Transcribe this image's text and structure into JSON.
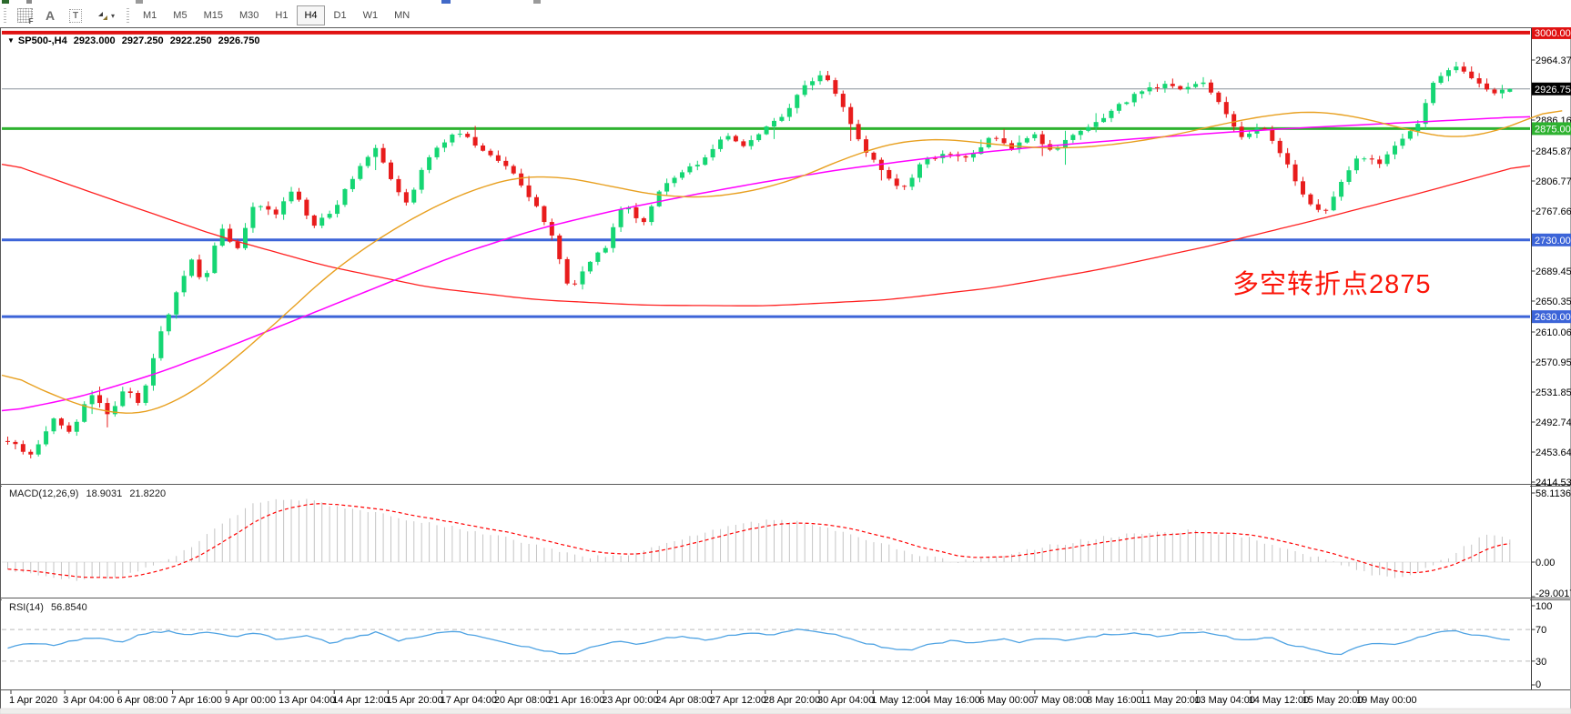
{
  "toolbar": {
    "tools": [
      {
        "name": "fibonacci-tool",
        "glyph": "F"
      },
      {
        "name": "text-tool",
        "glyph": "A"
      },
      {
        "name": "text-label-tool",
        "glyph": "T"
      },
      {
        "name": "arrows-tool",
        "glyph": ""
      }
    ],
    "periods": [
      "M1",
      "M5",
      "M15",
      "M30",
      "H1",
      "H4",
      "D1",
      "W1",
      "MN"
    ],
    "active_period": "H4"
  },
  "chart_data": {
    "type": "candlestick",
    "symbol_period": "SP500-,H4",
    "ohlc": {
      "open": "2923.000",
      "high": "2927.250",
      "low": "2922.250",
      "close": "2926.750"
    },
    "price_axis_ticks": [
      "2964.375",
      "2886.165",
      "2845.875",
      "2806.770",
      "2767.665",
      "2689.455",
      "2650.350",
      "2610.060",
      "2570.955",
      "2531.850",
      "2492.745",
      "2453.640",
      "2414.535"
    ],
    "levels": [
      {
        "value": 3000.0,
        "label": "3000.000",
        "color": "#E01212",
        "thickness": 4
      },
      {
        "value": 2875.0,
        "label": "2875.000",
        "color": "#2EB230",
        "thickness": 3
      },
      {
        "value": 2730.0,
        "label": "2730.000",
        "color": "#3C64D8",
        "thickness": 3
      },
      {
        "value": 2630.0,
        "label": "2630.000",
        "color": "#3C64D8",
        "thickness": 3
      }
    ],
    "bid": {
      "value": 2926.75,
      "label": "2926.750",
      "line_color": "#8A939B",
      "badge_color": "#000000"
    },
    "time_labels": [
      "1 Apr 2020",
      "3 Apr 04:00",
      "6 Apr 08:00",
      "7 Apr 16:00",
      "9 Apr 00:00",
      "13 Apr 04:00",
      "14 Apr 12:00",
      "15 Apr 20:00",
      "17 Apr 04:00",
      "20 Apr 08:00",
      "21 Apr 16:00",
      "23 Apr 00:00",
      "24 Apr 08:00",
      "27 Apr 12:00",
      "28 Apr 20:00",
      "30 Apr 04:00",
      "1 May 12:00",
      "4 May 16:00",
      "6 May 00:00",
      "7 May 08:00",
      "8 May 16:00",
      "11 May 20:00",
      "13 May 04:00",
      "14 May 12:00",
      "15 May 20:00",
      "19 May 00:00"
    ],
    "colors": {
      "up": "#15D673",
      "down": "#E81C1C",
      "ma_fast": "#E8A020",
      "ma_mid": "#FF00FF",
      "ma_slow": "#FF2020",
      "macd_hist": "#C4C4C4",
      "macd_signal": "#FF0000",
      "rsi": "#4FA3E3"
    },
    "close_path": [
      [
        0,
        2468
      ],
      [
        0.016,
        2448
      ],
      [
        0.03,
        2498
      ],
      [
        0.042,
        2478
      ],
      [
        0.055,
        2532
      ],
      [
        0.068,
        2500
      ],
      [
        0.078,
        2540
      ],
      [
        0.088,
        2515
      ],
      [
        0.1,
        2598
      ],
      [
        0.112,
        2660
      ],
      [
        0.122,
        2705
      ],
      [
        0.13,
        2672
      ],
      [
        0.142,
        2748
      ],
      [
        0.152,
        2712
      ],
      [
        0.165,
        2782
      ],
      [
        0.178,
        2760
      ],
      [
        0.19,
        2798
      ],
      [
        0.203,
        2748
      ],
      [
        0.218,
        2772
      ],
      [
        0.232,
        2820
      ],
      [
        0.245,
        2852
      ],
      [
        0.258,
        2800
      ],
      [
        0.266,
        2778
      ],
      [
        0.278,
        2832
      ],
      [
        0.29,
        2858
      ],
      [
        0.3,
        2872
      ],
      [
        0.312,
        2852
      ],
      [
        0.325,
        2838
      ],
      [
        0.338,
        2812
      ],
      [
        0.352,
        2772
      ],
      [
        0.364,
        2730
      ],
      [
        0.374,
        2662
      ],
      [
        0.386,
        2700
      ],
      [
        0.398,
        2722
      ],
      [
        0.41,
        2780
      ],
      [
        0.422,
        2750
      ],
      [
        0.435,
        2798
      ],
      [
        0.45,
        2818
      ],
      [
        0.465,
        2838
      ],
      [
        0.478,
        2868
      ],
      [
        0.492,
        2852
      ],
      [
        0.505,
        2878
      ],
      [
        0.518,
        2895
      ],
      [
        0.53,
        2932
      ],
      [
        0.543,
        2948
      ],
      [
        0.556,
        2902
      ],
      [
        0.568,
        2852
      ],
      [
        0.582,
        2822
      ],
      [
        0.595,
        2792
      ],
      [
        0.61,
        2835
      ],
      [
        0.625,
        2842
      ],
      [
        0.64,
        2836
      ],
      [
        0.655,
        2868
      ],
      [
        0.668,
        2846
      ],
      [
        0.682,
        2870
      ],
      [
        0.695,
        2845
      ],
      [
        0.71,
        2866
      ],
      [
        0.725,
        2882
      ],
      [
        0.74,
        2905
      ],
      [
        0.755,
        2925
      ],
      [
        0.77,
        2932
      ],
      [
        0.782,
        2925
      ],
      [
        0.795,
        2938
      ],
      [
        0.808,
        2905
      ],
      [
        0.822,
        2862
      ],
      [
        0.835,
        2880
      ],
      [
        0.848,
        2842
      ],
      [
        0.862,
        2788
      ],
      [
        0.875,
        2762
      ],
      [
        0.888,
        2805
      ],
      [
        0.9,
        2842
      ],
      [
        0.912,
        2828
      ],
      [
        0.925,
        2856
      ],
      [
        0.938,
        2878
      ],
      [
        0.95,
        2938
      ],
      [
        0.962,
        2958
      ],
      [
        0.975,
        2940
      ],
      [
        0.988,
        2922
      ],
      [
        1,
        2926.75
      ]
    ],
    "ma_orange_path": [
      [
        0,
        2560
      ],
      [
        0.03,
        2530
      ],
      [
        0.06,
        2508
      ],
      [
        0.09,
        2502
      ],
      [
        0.12,
        2528
      ],
      [
        0.15,
        2576
      ],
      [
        0.18,
        2630
      ],
      [
        0.21,
        2686
      ],
      [
        0.24,
        2730
      ],
      [
        0.27,
        2766
      ],
      [
        0.3,
        2794
      ],
      [
        0.33,
        2812
      ],
      [
        0.36,
        2812
      ],
      [
        0.39,
        2800
      ],
      [
        0.42,
        2788
      ],
      [
        0.45,
        2785
      ],
      [
        0.48,
        2793
      ],
      [
        0.51,
        2810
      ],
      [
        0.54,
        2836
      ],
      [
        0.57,
        2856
      ],
      [
        0.6,
        2862
      ],
      [
        0.63,
        2856
      ],
      [
        0.66,
        2850
      ],
      [
        0.69,
        2850
      ],
      [
        0.72,
        2856
      ],
      [
        0.75,
        2866
      ],
      [
        0.78,
        2880
      ],
      [
        0.81,
        2892
      ],
      [
        0.84,
        2898
      ],
      [
        0.87,
        2890
      ],
      [
        0.9,
        2874
      ],
      [
        0.93,
        2862
      ],
      [
        0.96,
        2872
      ],
      [
        0.98,
        2890
      ],
      [
        1,
        2902
      ]
    ],
    "ma_magenta_path": [
      [
        0,
        2505
      ],
      [
        0.05,
        2525
      ],
      [
        0.1,
        2555
      ],
      [
        0.15,
        2592
      ],
      [
        0.2,
        2632
      ],
      [
        0.25,
        2672
      ],
      [
        0.3,
        2712
      ],
      [
        0.35,
        2744
      ],
      [
        0.4,
        2768
      ],
      [
        0.45,
        2788
      ],
      [
        0.5,
        2806
      ],
      [
        0.55,
        2822
      ],
      [
        0.6,
        2835
      ],
      [
        0.65,
        2846
      ],
      [
        0.7,
        2855
      ],
      [
        0.75,
        2863
      ],
      [
        0.8,
        2870
      ],
      [
        0.85,
        2876
      ],
      [
        0.9,
        2881
      ],
      [
        0.95,
        2886
      ],
      [
        1,
        2891
      ]
    ],
    "ma_red_path": [
      [
        0,
        2833
      ],
      [
        0.07,
        2784
      ],
      [
        0.14,
        2736
      ],
      [
        0.21,
        2697
      ],
      [
        0.28,
        2668
      ],
      [
        0.35,
        2652
      ],
      [
        0.42,
        2645
      ],
      [
        0.5,
        2644
      ],
      [
        0.58,
        2652
      ],
      [
        0.65,
        2668
      ],
      [
        0.72,
        2692
      ],
      [
        0.79,
        2722
      ],
      [
        0.86,
        2756
      ],
      [
        0.93,
        2792
      ],
      [
        1,
        2830
      ]
    ],
    "macd": {
      "name": "MACD(12,26,9)",
      "value_main": "18.9031",
      "value_signal": "21.8220",
      "axis": [
        {
          "v": 58.1136,
          "label": "58.1136"
        },
        {
          "v": 0,
          "label": "0.00"
        },
        {
          "v": -29.0017,
          "label": "-29.0017"
        }
      ],
      "path": [
        [
          0,
          -6
        ],
        [
          0.02,
          -11
        ],
        [
          0.045,
          -15
        ],
        [
          0.07,
          -13
        ],
        [
          0.09,
          -7
        ],
        [
          0.11,
          4
        ],
        [
          0.13,
          20
        ],
        [
          0.15,
          38
        ],
        [
          0.165,
          50
        ],
        [
          0.18,
          54
        ],
        [
          0.2,
          52
        ],
        [
          0.22,
          47
        ],
        [
          0.25,
          40
        ],
        [
          0.28,
          33
        ],
        [
          0.31,
          26
        ],
        [
          0.34,
          18
        ],
        [
          0.37,
          9
        ],
        [
          0.39,
          4
        ],
        [
          0.41,
          6
        ],
        [
          0.43,
          12
        ],
        [
          0.45,
          20
        ],
        [
          0.47,
          28
        ],
        [
          0.49,
          33
        ],
        [
          0.51,
          35
        ],
        [
          0.53,
          33
        ],
        [
          0.55,
          27
        ],
        [
          0.57,
          20
        ],
        [
          0.59,
          12
        ],
        [
          0.61,
          5
        ],
        [
          0.63,
          0
        ],
        [
          0.65,
          3
        ],
        [
          0.67,
          8
        ],
        [
          0.69,
          13
        ],
        [
          0.71,
          17
        ],
        [
          0.73,
          21
        ],
        [
          0.75,
          24
        ],
        [
          0.77,
          26
        ],
        [
          0.79,
          26
        ],
        [
          0.81,
          24
        ],
        [
          0.83,
          19
        ],
        [
          0.85,
          12
        ],
        [
          0.87,
          5
        ],
        [
          0.89,
          -3
        ],
        [
          0.905,
          -9
        ],
        [
          0.92,
          -13
        ],
        [
          0.935,
          -10
        ],
        [
          0.95,
          -3
        ],
        [
          0.96,
          5
        ],
        [
          0.97,
          13
        ],
        [
          0.98,
          20
        ],
        [
          0.99,
          24
        ],
        [
          1,
          19
        ]
      ]
    },
    "rsi": {
      "name": "RSI(14)",
      "value": "56.8540",
      "axis": [
        {
          "v": 100,
          "label": "100"
        },
        {
          "v": 70,
          "label": "70"
        },
        {
          "v": 30,
          "label": "30"
        },
        {
          "v": 0,
          "label": "0"
        }
      ],
      "levels": [
        70,
        30
      ],
      "path": [
        [
          0,
          47
        ],
        [
          0.015,
          52
        ],
        [
          0.03,
          50
        ],
        [
          0.045,
          57
        ],
        [
          0.06,
          60
        ],
        [
          0.075,
          54
        ],
        [
          0.09,
          65
        ],
        [
          0.105,
          68
        ],
        [
          0.12,
          62
        ],
        [
          0.135,
          67
        ],
        [
          0.15,
          60
        ],
        [
          0.165,
          65
        ],
        [
          0.18,
          58
        ],
        [
          0.2,
          63
        ],
        [
          0.215,
          53
        ],
        [
          0.23,
          60
        ],
        [
          0.245,
          66
        ],
        [
          0.26,
          56
        ],
        [
          0.275,
          62
        ],
        [
          0.29,
          67
        ],
        [
          0.3,
          68
        ],
        [
          0.315,
          60
        ],
        [
          0.33,
          55
        ],
        [
          0.345,
          48
        ],
        [
          0.36,
          43
        ],
        [
          0.375,
          38
        ],
        [
          0.39,
          48
        ],
        [
          0.405,
          55
        ],
        [
          0.42,
          50
        ],
        [
          0.435,
          58
        ],
        [
          0.45,
          61
        ],
        [
          0.465,
          57
        ],
        [
          0.48,
          63
        ],
        [
          0.495,
          66
        ],
        [
          0.51,
          63
        ],
        [
          0.525,
          70
        ],
        [
          0.54,
          68
        ],
        [
          0.555,
          61
        ],
        [
          0.57,
          53
        ],
        [
          0.585,
          47
        ],
        [
          0.6,
          44
        ],
        [
          0.615,
          52
        ],
        [
          0.63,
          56
        ],
        [
          0.645,
          52
        ],
        [
          0.66,
          58
        ],
        [
          0.675,
          54
        ],
        [
          0.69,
          60
        ],
        [
          0.705,
          55
        ],
        [
          0.72,
          61
        ],
        [
          0.735,
          64
        ],
        [
          0.75,
          66
        ],
        [
          0.765,
          62
        ],
        [
          0.78,
          65
        ],
        [
          0.795,
          67
        ],
        [
          0.81,
          61
        ],
        [
          0.825,
          56
        ],
        [
          0.84,
          60
        ],
        [
          0.855,
          50
        ],
        [
          0.87,
          45
        ],
        [
          0.885,
          37
        ],
        [
          0.9,
          50
        ],
        [
          0.912,
          52
        ],
        [
          0.925,
          50
        ],
        [
          0.94,
          60
        ],
        [
          0.955,
          67
        ],
        [
          0.965,
          68
        ],
        [
          0.975,
          63
        ],
        [
          0.985,
          61
        ],
        [
          1,
          57
        ]
      ]
    },
    "annotation": {
      "text": "多空转折点2875",
      "color": "#FB1509"
    }
  }
}
